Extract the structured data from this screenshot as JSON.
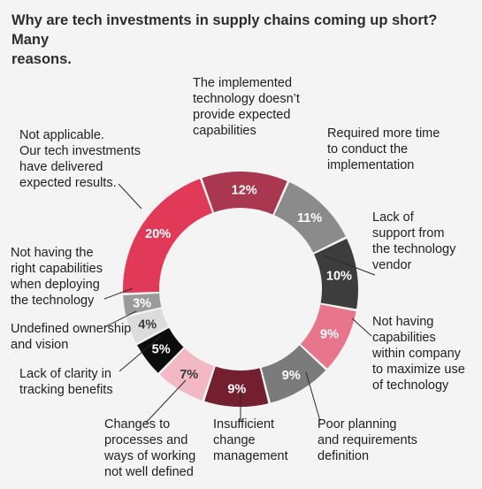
{
  "chart_data": {
    "type": "donut",
    "title": "Why are tech investments in supply chains coming up short? Many reasons.",
    "unit": "%",
    "slices": [
      {
        "label": "The implemented technology doesn’t provide expected capabilities",
        "value": 12,
        "display": "12%",
        "color": "#a8374f",
        "text_color": "#ffffff"
      },
      {
        "label": "Required more time to conduct the implementation",
        "value": 11,
        "display": "11%",
        "color": "#8b8b8b",
        "text_color": "#ffffff"
      },
      {
        "label": "Lack of support from the technology vendor",
        "value": 10,
        "display": "10%",
        "color": "#3d3d3d",
        "text_color": "#ffffff"
      },
      {
        "label": "Not having capabilities within company to maximize use of technology",
        "value": 9,
        "display": "9%",
        "color": "#e7768c",
        "text_color": "#ffffff"
      },
      {
        "label": "Poor planning and requirements definition",
        "value": 9,
        "display": "9%",
        "color": "#7b7b7b",
        "text_color": "#ffffff"
      },
      {
        "label": "Insufficient change management",
        "value": 9,
        "display": "9%",
        "color": "#731f2f",
        "text_color": "#ffffff"
      },
      {
        "label": "Changes to processes and ways of working not well defined",
        "value": 7,
        "display": "7%",
        "color": "#f2b8c3",
        "text_color": "#3a3a3a"
      },
      {
        "label": "Lack of clarity in tracking benefits",
        "value": 5,
        "display": "5%",
        "color": "#0c0c0c",
        "text_color": "#ffffff"
      },
      {
        "label": "Undefined ownership and vision",
        "value": 4,
        "display": "4%",
        "color": "#dcdcdc",
        "text_color": "#3a3a3a"
      },
      {
        "label": "Not having the right capabilities when deploying the technology",
        "value": 3,
        "display": "3%",
        "color": "#9a9a9a",
        "text_color": "#ffffff"
      },
      {
        "label": "Not applicable. Our tech investments have delivered expected results.",
        "value": 20,
        "display": "20%",
        "color": "#e03a58",
        "text_color": "#ffffff"
      }
    ]
  }
}
